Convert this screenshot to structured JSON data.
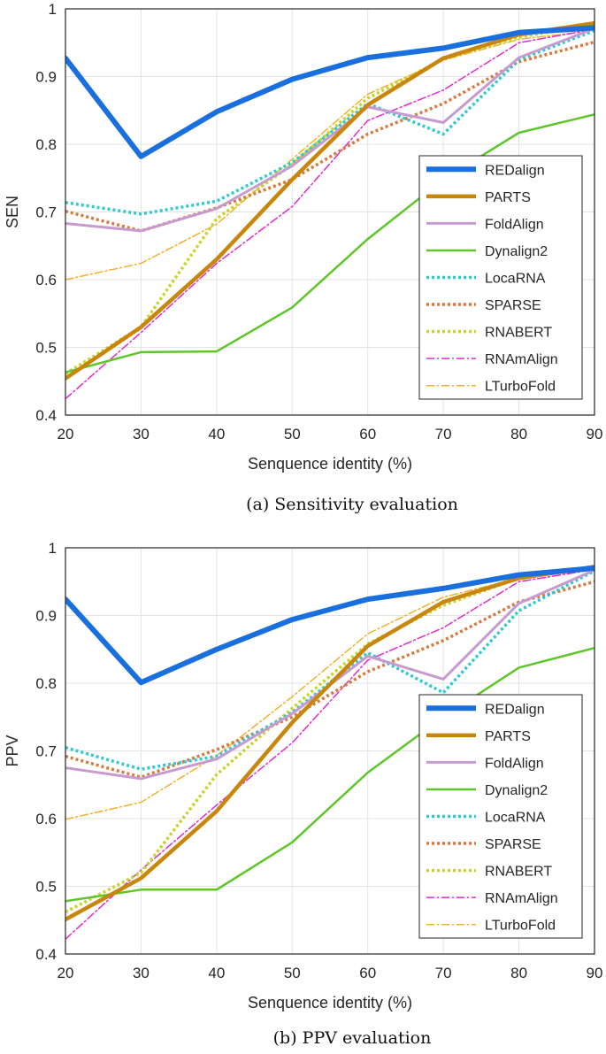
{
  "chart_data": [
    {
      "type": "line",
      "title": "",
      "caption": "(a) Sensitivity evaluation",
      "xlabel": "Senquence identity (%)",
      "ylabel": "SEN",
      "x": [
        20,
        30,
        40,
        50,
        60,
        70,
        80,
        90
      ],
      "xlim": [
        20,
        90
      ],
      "ylim": [
        0.4,
        1.0
      ],
      "xticks": [
        "20",
        "30",
        "40",
        "50",
        "60",
        "70",
        "80",
        "90"
      ],
      "yticks": [
        "0.4",
        "0.5",
        "0.6",
        "0.7",
        "0.8",
        "0.9",
        "1"
      ],
      "grid": true,
      "legend_position": "bottom-right",
      "series": [
        {
          "name": "REDalign",
          "values": [
            0.927,
            0.782,
            0.848,
            0.896,
            0.928,
            0.942,
            0.965,
            0.972
          ]
        },
        {
          "name": "PARTS",
          "values": [
            0.454,
            0.53,
            0.63,
            0.748,
            0.858,
            0.927,
            0.962,
            0.979
          ]
        },
        {
          "name": "FoldAlign",
          "values": [
            0.683,
            0.672,
            0.705,
            0.768,
            0.855,
            0.832,
            0.928,
            0.971
          ]
        },
        {
          "name": "Dynalign2",
          "values": [
            0.463,
            0.493,
            0.494,
            0.559,
            0.66,
            0.748,
            0.817,
            0.844
          ]
        },
        {
          "name": "LocaRNA",
          "values": [
            0.714,
            0.697,
            0.716,
            0.773,
            0.86,
            0.815,
            0.925,
            0.968
          ]
        },
        {
          "name": "SPARSE",
          "values": [
            0.701,
            0.672,
            0.706,
            0.748,
            0.815,
            0.86,
            0.922,
            0.951
          ]
        },
        {
          "name": "RNABERT",
          "values": [
            0.461,
            0.53,
            0.69,
            0.77,
            0.868,
            0.926,
            0.958,
            0.977
          ]
        },
        {
          "name": "RNAmAlign",
          "values": [
            0.424,
            0.522,
            0.624,
            0.708,
            0.835,
            0.88,
            0.95,
            0.97
          ]
        },
        {
          "name": "LTurboFold",
          "values": [
            0.6,
            0.624,
            0.682,
            0.778,
            0.874,
            0.924,
            0.955,
            0.968
          ]
        }
      ]
    },
    {
      "type": "line",
      "title": "",
      "caption": "(b) PPV evaluation",
      "xlabel": "Senquence identity (%)",
      "ylabel": "PPV",
      "x": [
        20,
        30,
        40,
        50,
        60,
        70,
        80,
        90
      ],
      "xlim": [
        20,
        90
      ],
      "ylim": [
        0.4,
        1.0
      ],
      "xticks": [
        "20",
        "30",
        "40",
        "50",
        "60",
        "70",
        "80",
        "90"
      ],
      "yticks": [
        "0.4",
        "0.5",
        "0.6",
        "0.7",
        "0.8",
        "0.9",
        "1"
      ],
      "grid": true,
      "legend_position": "bottom-right",
      "series": [
        {
          "name": "REDalign",
          "values": [
            0.924,
            0.801,
            0.85,
            0.894,
            0.924,
            0.94,
            0.96,
            0.97
          ]
        },
        {
          "name": "PARTS",
          "values": [
            0.451,
            0.512,
            0.611,
            0.742,
            0.855,
            0.92,
            0.955,
            0.972
          ]
        },
        {
          "name": "FoldAlign",
          "values": [
            0.675,
            0.659,
            0.688,
            0.755,
            0.84,
            0.806,
            0.918,
            0.967
          ]
        },
        {
          "name": "Dynalign2",
          "values": [
            0.478,
            0.495,
            0.495,
            0.565,
            0.668,
            0.75,
            0.823,
            0.852
          ]
        },
        {
          "name": "LocaRNA",
          "values": [
            0.705,
            0.673,
            0.692,
            0.757,
            0.845,
            0.786,
            0.907,
            0.966
          ]
        },
        {
          "name": "SPARSE",
          "values": [
            0.692,
            0.661,
            0.702,
            0.75,
            0.817,
            0.863,
            0.92,
            0.95
          ]
        },
        {
          "name": "RNABERT",
          "values": [
            0.462,
            0.52,
            0.665,
            0.763,
            0.858,
            0.915,
            0.955,
            0.973
          ]
        },
        {
          "name": "RNAmAlign",
          "values": [
            0.422,
            0.524,
            0.62,
            0.712,
            0.834,
            0.882,
            0.95,
            0.968
          ]
        },
        {
          "name": "LTurboFold",
          "values": [
            0.599,
            0.624,
            0.693,
            0.78,
            0.873,
            0.927,
            0.955,
            0.968
          ]
        }
      ]
    }
  ],
  "series_styles": [
    {
      "name": "REDalign",
      "color": "#1a6fdf",
      "dash": "solid"
    },
    {
      "name": "PARTS",
      "color": "#c8860d",
      "dash": "solid"
    },
    {
      "name": "FoldAlign",
      "color": "#c79bd0",
      "dash": "solid"
    },
    {
      "name": "Dynalign2",
      "color": "#5ec62b",
      "dash": "solid"
    },
    {
      "name": "LocaRNA",
      "color": "#2fc9cf",
      "dash": "dotted"
    },
    {
      "name": "SPARSE",
      "color": "#d9793e",
      "dash": "dotted"
    },
    {
      "name": "RNABERT",
      "color": "#c9d42a",
      "dash": "dotted"
    },
    {
      "name": "RNAmAlign",
      "color": "#e22ad2",
      "dash": "dashdot"
    },
    {
      "name": "LTurboFold",
      "color": "#f0b22d",
      "dash": "dashdot"
    }
  ]
}
